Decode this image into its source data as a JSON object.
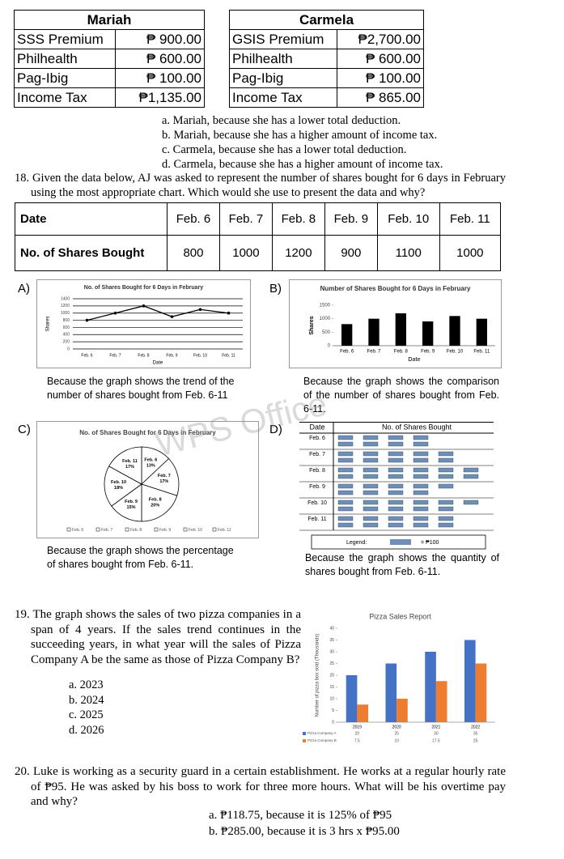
{
  "q17": {
    "tables": [
      {
        "title": "Mariah",
        "rows": [
          [
            "SSS Premium",
            "₱ 900.00"
          ],
          [
            "Philhealth",
            "₱ 600.00"
          ],
          [
            "Pag-Ibig",
            "₱ 100.00"
          ],
          [
            "Income Tax",
            "₱1,135.00"
          ]
        ]
      },
      {
        "title": "Carmela",
        "rows": [
          [
            "GSIS Premium",
            "₱2,700.00"
          ],
          [
            "Philhealth",
            "₱ 600.00"
          ],
          [
            "Pag-Ibig",
            "₱ 100.00"
          ],
          [
            "Income Tax",
            "₱ 865.00"
          ]
        ]
      }
    ],
    "options": [
      "a.  Mariah, because she has a lower total deduction.",
      "b.  Mariah, because she has a higher amount of income tax.",
      "c.  Carmela, because she has a lower total deduction.",
      "d.  Carmela, because she has a higher amount of income tax."
    ]
  },
  "q18": {
    "question": "18. Given the data below, AJ was asked to represent the number of shares bought for 6 days in February using the most appropriate chart. Which would she use to present the data and why?",
    "table": {
      "header": [
        "Date",
        "Feb. 6",
        "Feb. 7",
        "Feb. 8",
        "Feb. 9",
        "Feb. 10",
        "Feb. 11"
      ],
      "row": [
        "No. of Shares Bought",
        "800",
        "1000",
        "1200",
        "900",
        "1100",
        "1000"
      ]
    },
    "watermark": "WPS Office",
    "choices": [
      {
        "letter": "A)",
        "caption": "Because the graph shows the trend of the number of shares bought from Feb. 6-11",
        "chart": {
          "type": "line",
          "title": "No. of Shares Bought for 6 Days in February",
          "x_label": "Date",
          "y_label": "Shares",
          "categories": [
            "Feb. 6",
            "Feb. 7",
            "Feb. 8",
            "Feb. 9",
            "Feb. 10",
            "Feb. 11"
          ],
          "values": [
            800,
            1000,
            1200,
            900,
            1100,
            1000
          ],
          "ylim": [
            0,
            1400
          ],
          "yticks": [
            0,
            200,
            400,
            600,
            800,
            1000,
            1200,
            1400
          ],
          "color": "#000000",
          "grid": true
        }
      },
      {
        "letter": "B)",
        "caption": "Because the graph shows the comparison of the number of shares bought from Feb. 6-11.",
        "chart": {
          "type": "bar",
          "title": "Number of Shares Bought for 6 Days in February",
          "x_label": "Date",
          "y_label": "Shares",
          "categories": [
            "Feb. 6",
            "Feb. 7",
            "Feb. 8",
            "Feb. 9",
            "Feb. 10",
            "Feb. 11"
          ],
          "values": [
            800,
            1000,
            1200,
            900,
            1100,
            1000
          ],
          "ylim": [
            0,
            1500
          ],
          "yticks": [
            0,
            500,
            1000,
            1500
          ],
          "color": "#000000",
          "grid": false
        }
      },
      {
        "letter": "C)",
        "caption": "Because the graph shows the percentage of shares bought from Feb. 6-11.",
        "chart": {
          "type": "pie",
          "title": "No. of Shares Bought for 6 Days in February",
          "categories": [
            "Feb. 6",
            "Feb. 7",
            "Feb. 8",
            "Feb. 9",
            "Feb. 10",
            "Feb. 11"
          ],
          "values": [
            13,
            17,
            20,
            15,
            18,
            17
          ],
          "value_labels": [
            "13%",
            "17%",
            "20%",
            "15%",
            "18%",
            "17%"
          ],
          "color": "#ffffff"
        }
      },
      {
        "letter": "D)",
        "caption": "Because the graph shows the quantity of shares bought from Feb. 6-11.",
        "chart": {
          "type": "pictograph",
          "headers": [
            "Date",
            "No. of Shares Bought"
          ],
          "categories": [
            "Feb. 6",
            "Feb. 7",
            "Feb. 8",
            "Feb. 9",
            "Feb. 10",
            "Feb. 11"
          ],
          "values": [
            8,
            10,
            12,
            9,
            11,
            10
          ],
          "legend_label": "Legend:",
          "legend_value": "= ₱100",
          "color": "#6f8fb8"
        }
      }
    ]
  },
  "q19": {
    "question": "19. The graph shows the sales of two pizza companies in a span of 4 years. If the sales trend continues in the succeeding years, in what year will the sales of Pizza Company A be the same as those of Pizza Company B?",
    "options": [
      "a.   2023",
      "b.   2024",
      "c.   2025",
      "d.   2026"
    ],
    "chart": {
      "type": "grouped-bar",
      "title": "Pizza Sales Report",
      "y_label": "Number of pizza box sold (Thousands)",
      "categories": [
        "2019",
        "2020",
        "2021",
        "2022"
      ],
      "series": [
        {
          "name": "Pizza Company A",
          "color": "#4472c4",
          "values": [
            20,
            25,
            30,
            35
          ]
        },
        {
          "name": "Pizza Company B",
          "color": "#ed7d31",
          "values": [
            7.5,
            10,
            17.5,
            25
          ]
        }
      ],
      "ylim": [
        0,
        40
      ],
      "yticks": [
        0,
        5,
        10,
        15,
        20,
        25,
        30,
        35,
        40
      ],
      "grid": false
    }
  },
  "q20": {
    "question": "20. Luke is working as a security guard in a certain establishment. He works at a regular hourly rate of ₱95. He was asked by his boss to work for three more hours. What will be his overtime pay and why?",
    "options": [
      "a.   ₱118.75, because it is 125% of ₱95",
      "b.   ₱285.00, because it is 3 hrs x ₱95.00"
    ]
  }
}
